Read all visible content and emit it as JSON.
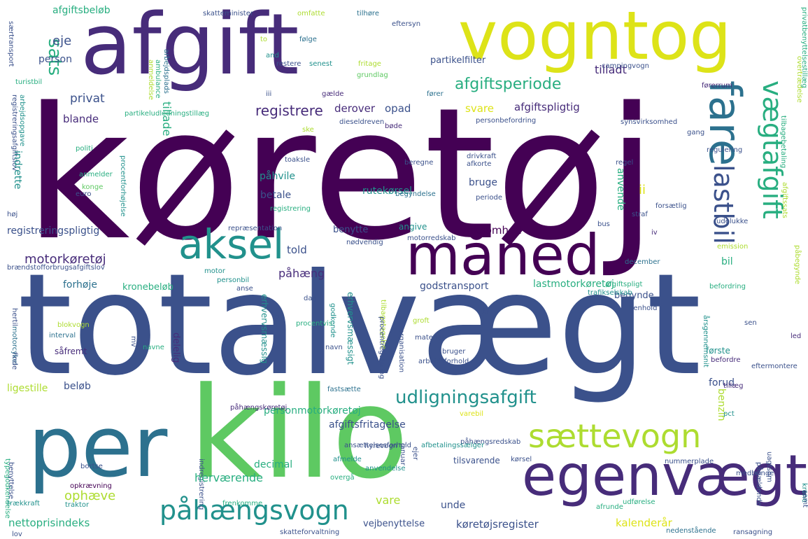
{
  "wordcloud": {
    "colors": {
      "c1": "#440154",
      "c2": "#472c7a",
      "c3": "#3b518b",
      "c4": "#2c718e",
      "c5": "#21918c",
      "c6": "#28ae80",
      "c7": "#5ec962",
      "c8": "#addc30",
      "c9": "#dde318"
    },
    "words": [
      {
        "text": "køretøj",
        "color": "c1"
      },
      {
        "text": "totalvægt",
        "color": "c3"
      },
      {
        "text": "afgift",
        "color": "c2"
      },
      {
        "text": "vogntog",
        "color": "c9"
      },
      {
        "text": "kilo",
        "color": "c7"
      },
      {
        "text": "per",
        "color": "c4"
      },
      {
        "text": "egenvægt",
        "color": "c2"
      },
      {
        "text": "måned",
        "color": "c1"
      },
      {
        "text": "aksel",
        "color": "c5"
      },
      {
        "text": "fare",
        "color": "c4"
      },
      {
        "text": "vægtafgift",
        "color": "c6"
      },
      {
        "text": "lastbil",
        "color": "c3"
      },
      {
        "text": "sættevogn",
        "color": "c8"
      },
      {
        "text": "påhængsvogn",
        "color": "c5"
      },
      {
        "text": "udligningsafgift",
        "color": "c5"
      },
      {
        "text": "afgiftsperiode",
        "color": "c6"
      },
      {
        "text": "registrere",
        "color": "c2"
      },
      {
        "text": "motorkøretøj",
        "color": "c2"
      },
      {
        "text": "afgiftsbeløb",
        "color": "c6"
      },
      {
        "text": "skatteminister",
        "color": "c3"
      },
      {
        "text": "omfatte",
        "color": "c8"
      },
      {
        "text": "tilhøre",
        "color": "c4"
      },
      {
        "text": "sats",
        "color": "c6"
      },
      {
        "text": "eje",
        "color": "c3"
      },
      {
        "text": "person",
        "color": "c3"
      },
      {
        "text": "to",
        "color": "c8"
      },
      {
        "text": "and",
        "color": "c5"
      },
      {
        "text": "restere",
        "color": "c3"
      },
      {
        "text": "følge",
        "color": "c4"
      },
      {
        "text": "senest",
        "color": "c5"
      },
      {
        "text": "fritage",
        "color": "c8"
      },
      {
        "text": "grundlag",
        "color": "c7"
      },
      {
        "text": "eftersyn",
        "color": "c3"
      },
      {
        "text": "partikelfilter",
        "color": "c3"
      },
      {
        "text": "tilladt",
        "color": "c2"
      },
      {
        "text": "campingvogn",
        "color": "c3"
      },
      {
        "text": "overtrædelse",
        "color": "c8"
      },
      {
        "text": "privatbenyttelsestillæg",
        "color": "c6"
      },
      {
        "text": "særtransport",
        "color": "c3"
      },
      {
        "text": "anmeldelse",
        "color": "c8"
      },
      {
        "text": "ambulance",
        "color": "c6"
      },
      {
        "text": "arbejdsplads",
        "color": "c4"
      },
      {
        "text": "privat",
        "color": "c3"
      },
      {
        "text": "tillade",
        "color": "c6"
      },
      {
        "text": "derover",
        "color": "c2"
      },
      {
        "text": "opad",
        "color": "c3"
      },
      {
        "text": "afgiftspligtig",
        "color": "c2"
      },
      {
        "text": "svare",
        "color": "c9"
      },
      {
        "text": "blande",
        "color": "c2"
      },
      {
        "text": "turistbil",
        "color": "c6"
      },
      {
        "text": "registreringsafgiftslov",
        "color": "c3"
      },
      {
        "text": "arbejdsopgave",
        "color": "c5"
      },
      {
        "text": "partikeludledningstillæg",
        "color": "c6"
      },
      {
        "text": "iii",
        "color": "c3"
      },
      {
        "text": "gælde",
        "color": "c2"
      },
      {
        "text": "fører",
        "color": "c4"
      },
      {
        "text": "førerrum",
        "color": "c2"
      },
      {
        "text": "ske",
        "color": "c8"
      },
      {
        "text": "dieseldreven",
        "color": "c3"
      },
      {
        "text": "bøde",
        "color": "c2"
      },
      {
        "text": "personbefordring",
        "color": "c3"
      },
      {
        "text": "synsvirksomhed",
        "color": "c3"
      },
      {
        "text": "gang",
        "color": "c3"
      },
      {
        "text": "tilbagebetaling",
        "color": "c6"
      },
      {
        "text": "regulering",
        "color": "c3"
      },
      {
        "text": "indrette",
        "color": "c5"
      },
      {
        "text": "politi",
        "color": "c6"
      },
      {
        "text": "toaksle",
        "color": "c3"
      },
      {
        "text": "drivkraft",
        "color": "c3"
      },
      {
        "text": "afkorte",
        "color": "c3"
      },
      {
        "text": "beregne",
        "color": "c3"
      },
      {
        "text": "regel",
        "color": "c3"
      },
      {
        "text": "påhvile",
        "color": "c5"
      },
      {
        "text": "anmelder",
        "color": "c6"
      },
      {
        "text": "konge",
        "color": "c7"
      },
      {
        "text": "procentforhøjelse",
        "color": "c5"
      },
      {
        "text": "ii",
        "color": "c9"
      },
      {
        "text": "betale",
        "color": "c3"
      },
      {
        "text": "bruge",
        "color": "c3"
      },
      {
        "text": "rutekørsel",
        "color": "c5"
      },
      {
        "text": "registrering",
        "color": "c6"
      },
      {
        "text": "begyndelse",
        "color": "c4"
      },
      {
        "text": "periode",
        "color": "c3"
      },
      {
        "text": "euro",
        "color": "c3"
      },
      {
        "text": "høj",
        "color": "c3"
      },
      {
        "text": "anvende",
        "color": "c6"
      },
      {
        "text": "forsætlig",
        "color": "c3"
      },
      {
        "text": "straf",
        "color": "c3"
      },
      {
        "text": "registreringspligtig",
        "color": "c3"
      },
      {
        "text": "repræsentation",
        "color": "c3"
      },
      {
        "text": "benytte",
        "color": "c3"
      },
      {
        "text": "angive",
        "color": "c5"
      },
      {
        "text": "virksomhed",
        "color": "c1"
      },
      {
        "text": "nødvendig",
        "color": "c3"
      },
      {
        "text": "motorredskab",
        "color": "c3"
      },
      {
        "text": "bus",
        "color": "c3"
      },
      {
        "text": "iv",
        "color": "c2"
      },
      {
        "text": "udelukke",
        "color": "c3"
      },
      {
        "text": "emission",
        "color": "c8"
      },
      {
        "text": "afgiftssats",
        "color": "c8"
      },
      {
        "text": "brændstofforbrugsafgiftslov",
        "color": "c3"
      },
      {
        "text": "told",
        "color": "c3"
      },
      {
        "text": "motor",
        "color": "c5"
      },
      {
        "text": "december",
        "color": "c4"
      },
      {
        "text": "bil",
        "color": "c6"
      },
      {
        "text": "påhæng",
        "color": "c2"
      },
      {
        "text": "afgiftspligt",
        "color": "c6"
      },
      {
        "text": "forhøje",
        "color": "c4"
      },
      {
        "text": "personbil",
        "color": "c5"
      },
      {
        "text": "anse",
        "color": "c3"
      },
      {
        "text": "kronebeløb",
        "color": "c6"
      },
      {
        "text": "godstransport",
        "color": "c3"
      },
      {
        "text": "lastmotorkøretøj",
        "color": "c6"
      },
      {
        "text": "begynde",
        "color": "c3"
      },
      {
        "text": "befordring",
        "color": "c6"
      },
      {
        "text": "trafikselskab",
        "color": "c5"
      },
      {
        "text": "dag",
        "color": "c3"
      },
      {
        "text": "påbegynde",
        "color": "c8"
      },
      {
        "text": "hertil",
        "color": "c3"
      },
      {
        "text": "ti",
        "color": "c3"
      },
      {
        "text": "erhvervsmæssig",
        "color": "c5"
      },
      {
        "text": "erhvervsmæssigt",
        "color": "c5"
      },
      {
        "text": "tilbagetagelse",
        "color": "c8"
      },
      {
        "text": "henhold",
        "color": "c3"
      },
      {
        "text": "år",
        "color": "c3"
      },
      {
        "text": "sen",
        "color": "c3"
      },
      {
        "text": "blokvogn",
        "color": "c8"
      },
      {
        "text": "procentvis",
        "color": "c6"
      },
      {
        "text": "groft",
        "color": "c8"
      },
      {
        "text": "interval",
        "color": "c4"
      },
      {
        "text": "materiel",
        "color": "c3"
      },
      {
        "text": "årsgennemsnit",
        "color": "c5"
      },
      {
        "text": "led",
        "color": "c2"
      },
      {
        "text": "motorcykel",
        "color": "c4"
      },
      {
        "text": "såfremt",
        "color": "c2"
      },
      {
        "text": "navne",
        "color": "c6"
      },
      {
        "text": "godkende",
        "color": "c5"
      },
      {
        "text": "navn",
        "color": "c3"
      },
      {
        "text": "procentregulering",
        "color": "c3"
      },
      {
        "text": "organisation",
        "color": "c3"
      },
      {
        "text": "bruger",
        "color": "c3"
      },
      {
        "text": "første",
        "color": "c5"
      },
      {
        "text": "befordre",
        "color": "c2"
      },
      {
        "text": "eftermontere",
        "color": "c3"
      },
      {
        "text": "finde",
        "color": "c3"
      },
      {
        "text": "mv",
        "color": "c3"
      },
      {
        "text": "arbejdsforhold",
        "color": "c3"
      },
      {
        "text": "ligestille",
        "color": "c8"
      },
      {
        "text": "beløb",
        "color": "c3"
      },
      {
        "text": "fastsætte",
        "color": "c4"
      },
      {
        "text": "forud",
        "color": "c3"
      },
      {
        "text": "tillæg",
        "color": "c2"
      },
      {
        "text": "benzin",
        "color": "c8"
      },
      {
        "text": "delelig",
        "color": "c2"
      },
      {
        "text": "personmotorkøretøj",
        "color": "c6"
      },
      {
        "text": "påhængskøretøj",
        "color": "c2"
      },
      {
        "text": "varebil",
        "color": "c9"
      },
      {
        "text": "pct",
        "color": "c5"
      },
      {
        "text": "afgiftsfritagelse",
        "color": "c3"
      },
      {
        "text": "påhængsredskab",
        "color": "c3"
      },
      {
        "text": "krone",
        "color": "c5"
      },
      {
        "text": "samt",
        "color": "c3"
      },
      {
        "text": "indregistrering",
        "color": "c3"
      },
      {
        "text": "typegodkendelse",
        "color": "c6"
      },
      {
        "text": "ansættelsesforhold",
        "color": "c3"
      },
      {
        "text": "afbetalingssælger",
        "color": "c5"
      },
      {
        "text": "hyrevogn",
        "color": "c3"
      },
      {
        "text": "januar",
        "color": "c3"
      },
      {
        "text": "ejer",
        "color": "c3"
      },
      {
        "text": "tilsvarende",
        "color": "c3"
      },
      {
        "text": "nummerplade",
        "color": "c3"
      },
      {
        "text": "pågældende",
        "color": "c3"
      },
      {
        "text": "uagtsom",
        "color": "c3"
      },
      {
        "text": "decimal",
        "color": "c6"
      },
      {
        "text": "afmelde",
        "color": "c5"
      },
      {
        "text": "kørsel",
        "color": "c3"
      },
      {
        "text": "medbringe",
        "color": "c3"
      },
      {
        "text": "benyttelse",
        "color": "c3"
      },
      {
        "text": "bortse",
        "color": "c3"
      },
      {
        "text": "herværende",
        "color": "c6"
      },
      {
        "text": "overgå",
        "color": "c6"
      },
      {
        "text": "anvendelse",
        "color": "c5"
      },
      {
        "text": "opkrævning",
        "color": "c1"
      },
      {
        "text": "ophæve",
        "color": "c8"
      },
      {
        "text": "vare",
        "color": "c8"
      },
      {
        "text": "trækkraft",
        "color": "c5"
      },
      {
        "text": "traktor",
        "color": "c5"
      },
      {
        "text": "frenkomme",
        "color": "c6"
      },
      {
        "text": "udførelse",
        "color": "c6"
      },
      {
        "text": "unde",
        "color": "c3"
      },
      {
        "text": "nettoprisindeks",
        "color": "c6"
      },
      {
        "text": "vejbenyttelse",
        "color": "c3"
      },
      {
        "text": "køretøjsregister",
        "color": "c3"
      },
      {
        "text": "afrunde",
        "color": "c6"
      },
      {
        "text": "kalenderår",
        "color": "c9"
      },
      {
        "text": "lov",
        "color": "c3"
      },
      {
        "text": "skatteforvaltning",
        "color": "c3"
      },
      {
        "text": "nedenstående",
        "color": "c4"
      },
      {
        "text": "ransagning",
        "color": "c3"
      },
      {
        "text": "oplysning",
        "color": "c4"
      },
      {
        "text": "tilladelse",
        "color": "c3"
      }
    ]
  }
}
